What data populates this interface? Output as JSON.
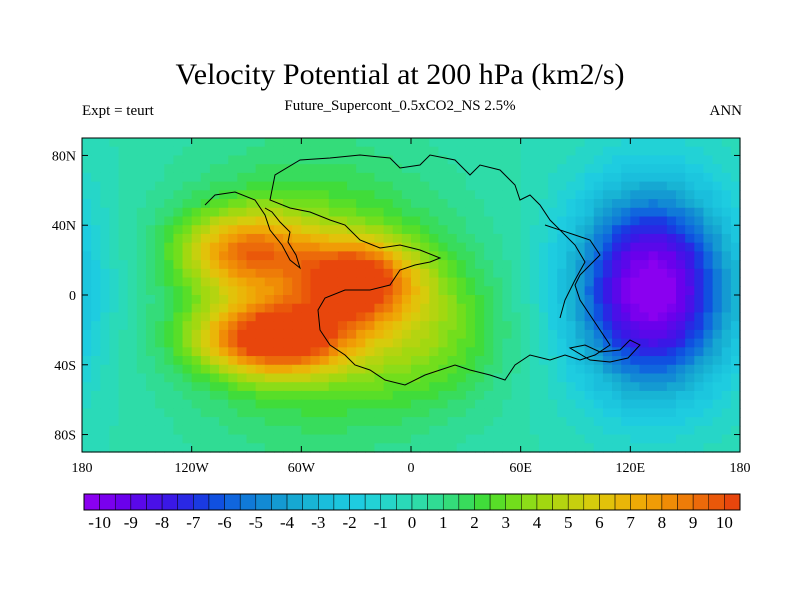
{
  "chart_data": {
    "type": "heatmap",
    "title": "Velocity Potential at 200 hPa (km2/s)",
    "subtitle": "Future_Supercont_0.5xCO2_NS 2.5%",
    "left_label": "Expt = teurt",
    "right_label": "ANN",
    "x_range": [
      -180,
      180
    ],
    "y_range": [
      -90,
      90
    ],
    "x_ticks": [
      {
        "value": -180,
        "label": "180"
      },
      {
        "value": -120,
        "label": "120W"
      },
      {
        "value": -60,
        "label": "60W"
      },
      {
        "value": 0,
        "label": "0"
      },
      {
        "value": 60,
        "label": "60E"
      },
      {
        "value": 120,
        "label": "120E"
      },
      {
        "value": 180,
        "label": "180"
      }
    ],
    "y_ticks": [
      {
        "value": 80,
        "label": "80N"
      },
      {
        "value": 40,
        "label": "40N"
      },
      {
        "value": 0,
        "label": "0"
      },
      {
        "value": -40,
        "label": "40S"
      },
      {
        "value": -80,
        "label": "80S"
      }
    ],
    "colorbar": {
      "min": -10.5,
      "max": 10.5,
      "step": 0.5,
      "labels": [
        "-10",
        "-9",
        "-8",
        "-7",
        "-6",
        "-5",
        "-4",
        "-3",
        "-2",
        "-1",
        "0",
        "1",
        "2",
        "3",
        "4",
        "5",
        "6",
        "7",
        "8",
        "9",
        "10"
      ],
      "colors": [
        "#8a00f0",
        "#7a00ee",
        "#6a00ec",
        "#5a08ea",
        "#4a10e8",
        "#3a18e6",
        "#2a28e4",
        "#1a3ae2",
        "#1050e0",
        "#1066de",
        "#107ad8",
        "#128ad4",
        "#149ad2",
        "#16a8d2",
        "#18b4d4",
        "#1abedc",
        "#1cc6de",
        "#1ecce0",
        "#22d2d6",
        "#26d6c8",
        "#2adab8",
        "#2edca8",
        "#30dc94",
        "#34dc7a",
        "#38dc5c",
        "#40dc3a",
        "#58de28",
        "#72de1c",
        "#8cdc18",
        "#a2d810",
        "#b4d410",
        "#c6d00e",
        "#d6cc0c",
        "#e2c20a",
        "#eab608",
        "#eeaa06",
        "#f09c06",
        "#f08c06",
        "#ee7c08",
        "#ec6a0a",
        "#ea580a",
        "#e8460c"
      ]
    },
    "field_centers": [
      {
        "lon": 132,
        "lat": 3,
        "amp": -10.8,
        "sx": 30,
        "sy": 40
      },
      {
        "lon": -75,
        "lat": -25,
        "amp": 9.5,
        "sx": 28,
        "sy": 14
      },
      {
        "lon": -30,
        "lat": 8,
        "amp": 8.2,
        "sx": 22,
        "sy": 16
      },
      {
        "lon": -90,
        "lat": 25,
        "amp": 6.5,
        "sx": 25,
        "sy": 16
      },
      {
        "lon": -55,
        "lat": 0,
        "amp": 4.0,
        "sx": 50,
        "sy": 55
      },
      {
        "lon": 10,
        "lat": -20,
        "amp": 2.5,
        "sx": 30,
        "sy": 30
      }
    ]
  }
}
